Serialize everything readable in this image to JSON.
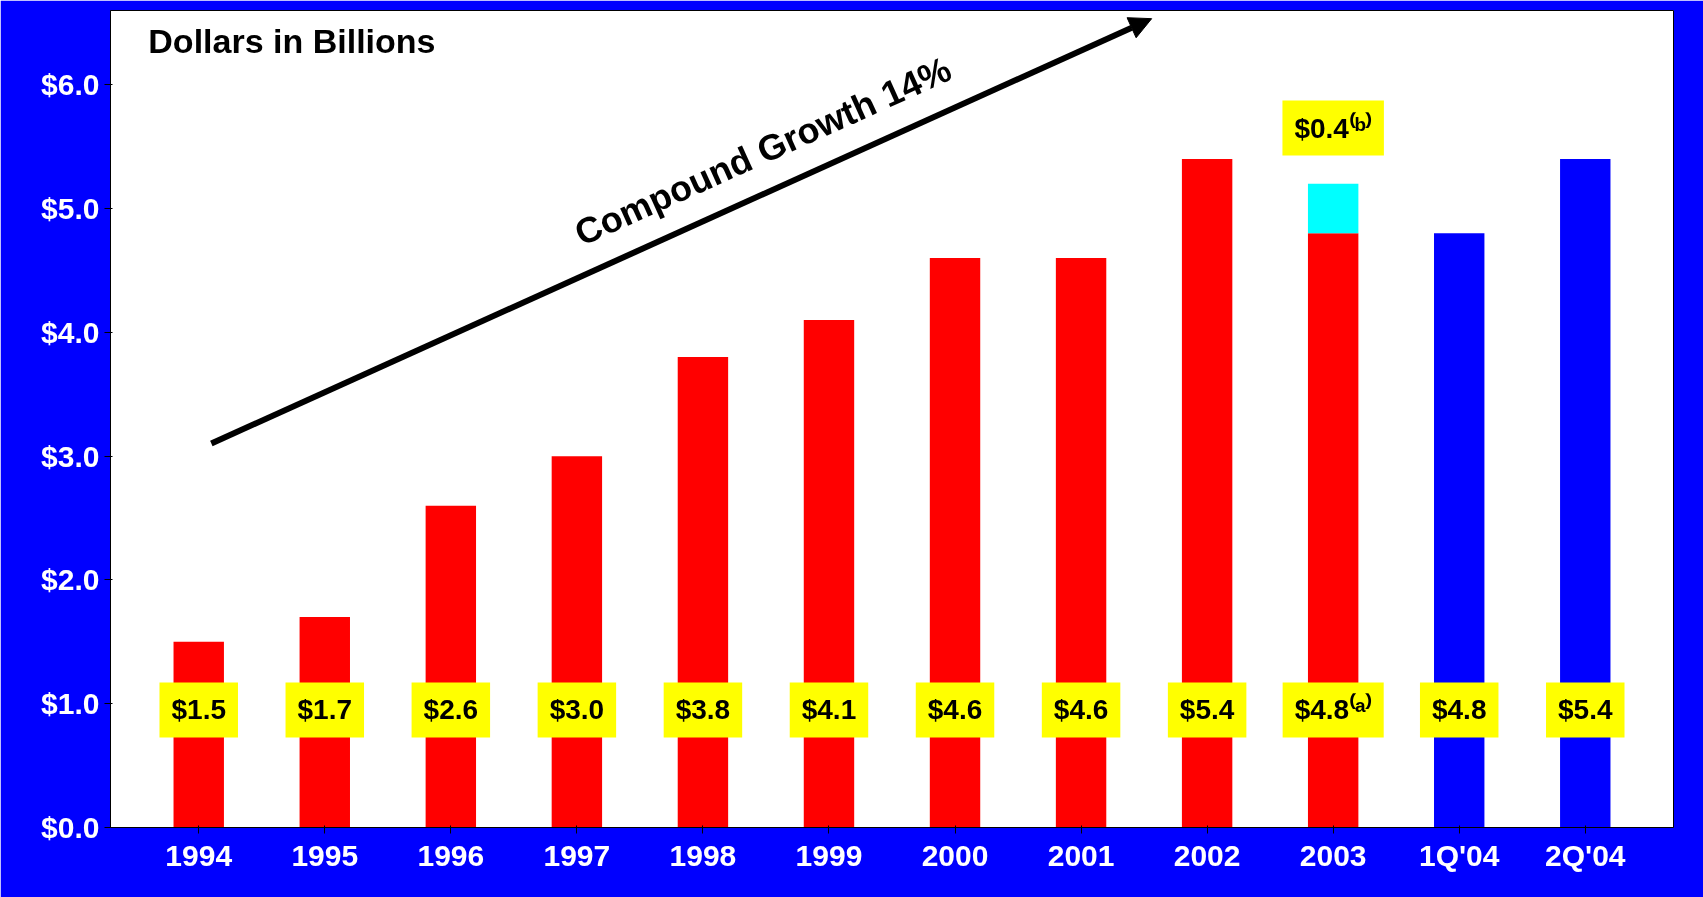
{
  "chart_data": {
    "type": "bar",
    "title": "Dollars in Billions",
    "stacked": true,
    "categories": [
      "1994",
      "1995",
      "1996",
      "1997",
      "1998",
      "1999",
      "2000",
      "2001",
      "2002",
      "2003",
      "1Q'04",
      "2Q'04"
    ],
    "series": [
      {
        "color": "#ff0000",
        "values": [
          1.5,
          1.7,
          2.6,
          3.0,
          3.8,
          4.1,
          4.6,
          4.6,
          5.4,
          4.8,
          null,
          null
        ],
        "value_labels": [
          "$1.5",
          "$1.7",
          "$2.6",
          "$3.0",
          "$3.8",
          "$4.1",
          "$4.6",
          "$4.6",
          "$5.4",
          "$4.8⁽ᵃ⁾",
          null,
          null
        ]
      },
      {
        "color": "#00ffff",
        "values": [
          null,
          null,
          null,
          null,
          null,
          null,
          null,
          null,
          null,
          0.4,
          null,
          null
        ],
        "value_labels": [
          null,
          null,
          null,
          null,
          null,
          null,
          null,
          null,
          null,
          "$0.4⁽ᵇ⁾",
          null,
          null
        ]
      },
      {
        "color": "#0000ff",
        "values": [
          null,
          null,
          null,
          null,
          null,
          null,
          null,
          null,
          null,
          null,
          4.8,
          5.4
        ],
        "value_labels": [
          null,
          null,
          null,
          null,
          null,
          null,
          null,
          null,
          null,
          null,
          "$4.8",
          "$5.4"
        ]
      }
    ],
    "ylim": [
      0,
      6.6
    ],
    "yticks": [
      {
        "value": 0,
        "label": "$0.0"
      },
      {
        "value": 1,
        "label": "$1.0"
      },
      {
        "value": 2,
        "label": "$2.0"
      },
      {
        "value": 3,
        "label": "$3.0"
      },
      {
        "value": 4,
        "label": "$4.0"
      },
      {
        "value": 5,
        "label": "$5.0"
      },
      {
        "value": 6,
        "label": "$6.0"
      }
    ],
    "annotations": [
      "Compound Growth 14%"
    ],
    "grid": false
  }
}
